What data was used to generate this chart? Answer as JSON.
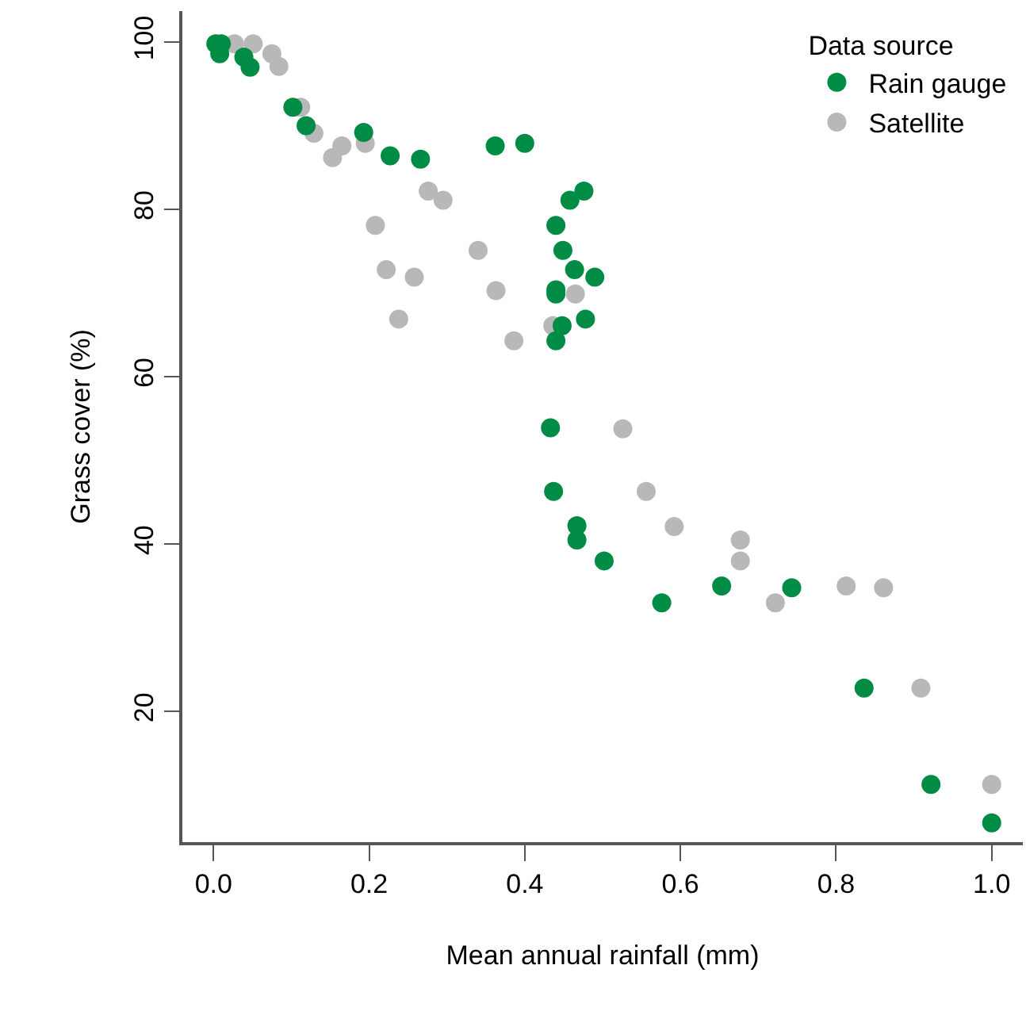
{
  "chart_data": {
    "type": "scatter",
    "xlabel": "Mean annual rainfall (mm)",
    "ylabel": "Grass cover (%)",
    "legend_title": "Data source",
    "legend": "top right",
    "grid": false,
    "marker": "circle",
    "xlim": [
      -0.04,
      1.04
    ],
    "ylim": [
      4.4,
      103.7
    ],
    "xticks": [
      {
        "value": 0,
        "label": "0.0"
      },
      0.2,
      0.4,
      0.6,
      0.8,
      {
        "value": 1,
        "label": "1.0"
      }
    ],
    "yticks": [
      20,
      40,
      60,
      80,
      100
    ],
    "series": [
      {
        "name": "Rain gauge",
        "color": "#008c45",
        "x": [
          0.003,
          0.01,
          0.008,
          0.039,
          0.047,
          0.102,
          0.119,
          0.193,
          0.227,
          0.266,
          0.362,
          0.4,
          0.476,
          0.458,
          0.44,
          0.449,
          0.464,
          0.49,
          0.44,
          0.44,
          0.478,
          0.448,
          0.44,
          0.433,
          0.437,
          0.467,
          0.467,
          0.502,
          0.576,
          0.653,
          0.743,
          0.836,
          0.922,
          1.0
        ],
        "values": [
          99.8,
          99.8,
          98.6,
          98.2,
          97.0,
          92.2,
          90.0,
          89.2,
          86.4,
          86.0,
          87.6,
          87.9,
          82.2,
          81.1,
          78.1,
          75.1,
          72.8,
          71.9,
          70.4,
          69.9,
          66.9,
          66.1,
          64.3,
          53.9,
          46.3,
          42.2,
          40.5,
          38.0,
          33.0,
          35.0,
          34.8,
          22.8,
          11.3,
          6.7
        ]
      },
      {
        "name": "Satellite",
        "color": "#b8b8b8",
        "x": [
          0.027,
          0.051,
          0.075,
          0.084,
          0.112,
          0.129,
          0.153,
          0.165,
          0.195,
          0.276,
          0.295,
          0.208,
          0.34,
          0.222,
          0.258,
          0.363,
          0.465,
          0.238,
          0.436,
          0.386,
          0.526,
          0.556,
          0.592,
          0.677,
          0.677,
          0.722,
          0.813,
          0.861,
          0.909,
          1.0
        ],
        "values": [
          99.8,
          99.8,
          98.6,
          97.1,
          92.2,
          89.1,
          86.2,
          87.6,
          87.9,
          82.2,
          81.1,
          78.1,
          75.1,
          72.8,
          71.9,
          70.3,
          69.9,
          66.9,
          66.1,
          64.3,
          53.8,
          46.3,
          42.1,
          40.5,
          38.0,
          33.0,
          35.0,
          34.8,
          22.8,
          11.3
        ]
      }
    ]
  }
}
